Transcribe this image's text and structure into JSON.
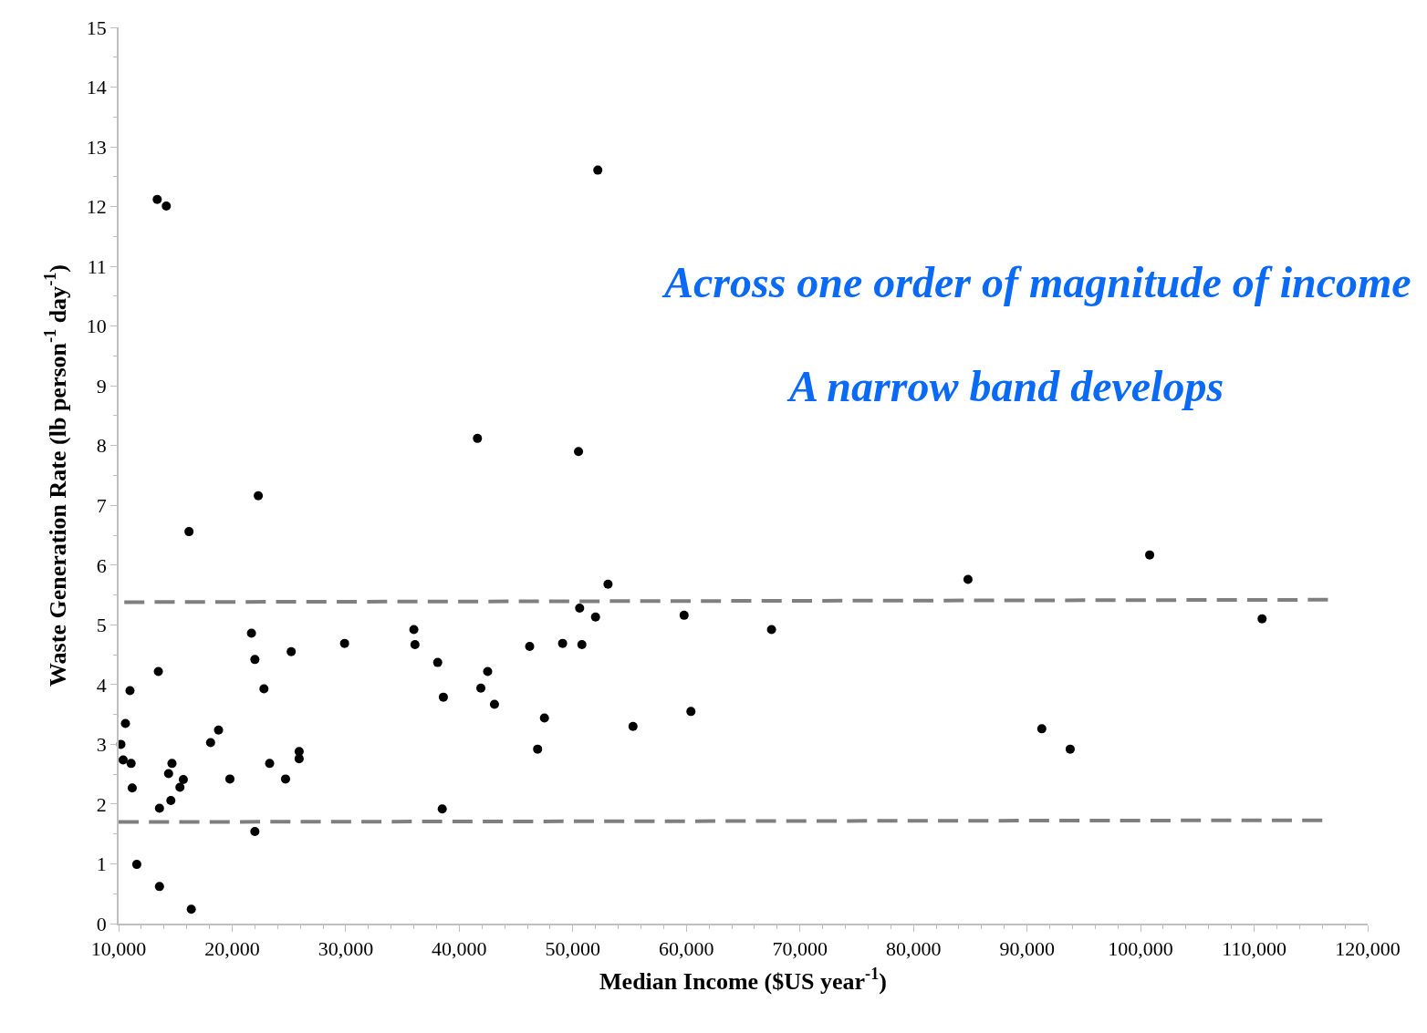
{
  "chart_data": {
    "type": "scatter",
    "xlabel": "Median Income ($US year$^{-1}$)",
    "ylabel": "Waste Generation Rate (lb person$^{-1}$ day$^{-1}$)",
    "xlim": [
      10000,
      120000
    ],
    "ylim": [
      0,
      15
    ],
    "xticks": [
      {
        "value": 10000,
        "label": "10,000"
      },
      {
        "value": 20000,
        "label": "20,000"
      },
      {
        "value": 30000,
        "label": "30,000"
      },
      {
        "value": 40000,
        "label": "40,000"
      },
      {
        "value": 50000,
        "label": "50,000"
      },
      {
        "value": 60000,
        "label": "60,000"
      },
      {
        "value": 70000,
        "label": "70,000"
      },
      {
        "value": 80000,
        "label": "80,000"
      },
      {
        "value": 90000,
        "label": "90,000"
      },
      {
        "value": 100000,
        "label": "100,000"
      },
      {
        "value": 110000,
        "label": "110,000"
      },
      {
        "value": 120000,
        "label": "120,000"
      }
    ],
    "yticks": [
      0,
      1,
      2,
      3,
      4,
      5,
      6,
      7,
      8,
      9,
      10,
      11,
      12,
      13,
      14,
      15
    ],
    "marker": "circle",
    "annotations": [
      "Across one order of magnitude of income",
      "A narrow band develops"
    ],
    "series": [
      {
        "color": "#000000",
        "x": [
          10200,
          10400,
          10600,
          11000,
          11100,
          11200,
          11600,
          13400,
          14200,
          13500,
          13600,
          13600,
          14400,
          14700,
          14600,
          15400,
          15700,
          16200,
          16400,
          18100,
          18800,
          19800,
          21700,
          22000,
          22000,
          22300,
          22800,
          23300,
          24700,
          25200,
          25900,
          25900,
          29900,
          36000,
          36100,
          38100,
          38600,
          38500,
          41600,
          41900,
          42500,
          43100,
          46200,
          46900,
          47500,
          49100,
          50500,
          50600,
          50800,
          52000,
          52200,
          53100,
          55300,
          59800,
          60400,
          67500,
          84800,
          91300,
          93800,
          100800,
          110700
        ],
        "values": [
          3.0,
          2.74,
          3.35,
          3.9,
          2.68,
          2.27,
          0.99,
          12.12,
          12.01,
          4.22,
          1.93,
          0.62,
          2.51,
          2.68,
          2.06,
          2.28,
          2.41,
          6.56,
          0.24,
          3.03,
          3.24,
          2.42,
          4.86,
          4.42,
          1.54,
          7.16,
          3.93,
          2.68,
          2.42,
          4.55,
          2.88,
          2.76,
          4.69,
          4.92,
          4.67,
          4.37,
          3.79,
          1.92,
          8.12,
          3.94,
          4.22,
          3.67,
          4.64,
          2.92,
          3.44,
          4.69,
          7.9,
          5.28,
          4.67,
          5.13,
          12.61,
          5.68,
          3.3,
          5.16,
          3.55,
          4.92,
          5.76,
          3.26,
          2.92,
          6.17,
          5.1
        ]
      },
      {
        "type": "line",
        "color": "#7f7f7f",
        "line_style": "dashed",
        "marker": "none",
        "x": [
          10500,
          116500
        ],
        "values": [
          5.38,
          5.42
        ]
      },
      {
        "type": "line",
        "color": "#7f7f7f",
        "line_style": "dashed",
        "marker": "none",
        "x": [
          10000,
          116000
        ],
        "values": [
          1.7,
          1.73
        ]
      }
    ]
  }
}
